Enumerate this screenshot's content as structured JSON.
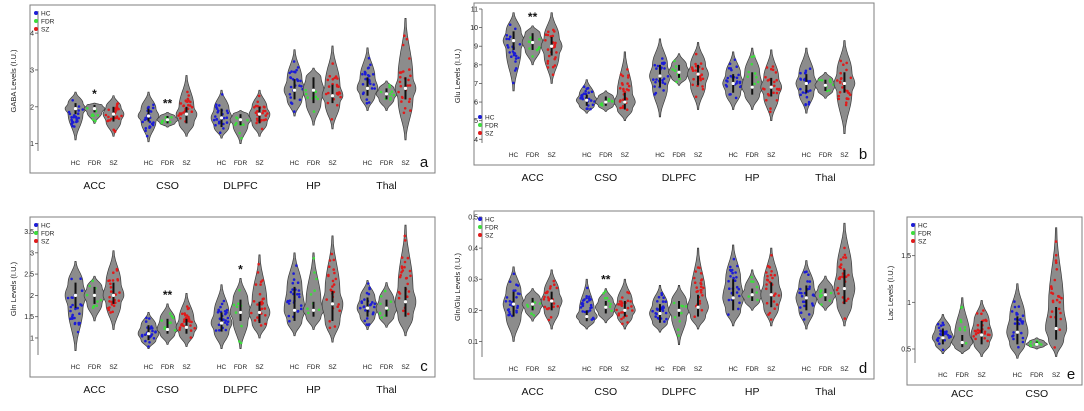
{
  "colors": {
    "HC": "#1c1cd6",
    "FDR": "#3ddc3d",
    "SZ": "#e01b1b",
    "violin": "#8c8c8c",
    "violin_stroke": "#3a3a3a",
    "frame": "#7f7f7f",
    "median": "#ffffff"
  },
  "chart_data": [
    {
      "id": "a",
      "type": "violin",
      "panel_label": "a",
      "ylabel": "GABA Levels (I.U.)",
      "ylim": [
        0.8,
        4.6
      ],
      "yticks": [
        1,
        2,
        3,
        4
      ],
      "legend": [
        "HC",
        "FDR",
        "SZ"
      ],
      "legend_position": "top-left",
      "group_labels": [
        "HC",
        "FDR",
        "SZ"
      ],
      "regions": [
        {
          "name": "ACC",
          "significance": "*",
          "sig_group": "FDR",
          "violins": [
            {
              "group": "HC",
              "min": 1.1,
              "q1": 1.8,
              "median": 1.95,
              "q3": 2.1,
              "max": 2.4
            },
            {
              "group": "FDR",
              "min": 1.55,
              "q1": 1.85,
              "median": 1.95,
              "q3": 2.05,
              "max": 2.1
            },
            {
              "group": "SZ",
              "min": 1.2,
              "q1": 1.6,
              "median": 1.8,
              "q3": 2.0,
              "max": 2.3
            }
          ]
        },
        {
          "name": "CSO",
          "significance": "**",
          "sig_group": "FDR",
          "violins": [
            {
              "group": "HC",
              "min": 1.05,
              "q1": 1.6,
              "median": 1.75,
              "q3": 1.95,
              "max": 2.4
            },
            {
              "group": "FDR",
              "min": 1.45,
              "q1": 1.55,
              "median": 1.65,
              "q3": 1.75,
              "max": 1.85
            },
            {
              "group": "SZ",
              "min": 1.2,
              "q1": 1.55,
              "median": 1.8,
              "q3": 2.0,
              "max": 2.85
            }
          ]
        },
        {
          "name": "DLPFC",
          "significance": "",
          "violins": [
            {
              "group": "HC",
              "min": 1.15,
              "q1": 1.45,
              "median": 1.7,
              "q3": 1.95,
              "max": 2.45
            },
            {
              "group": "FDR",
              "min": 1.0,
              "q1": 1.5,
              "median": 1.65,
              "q3": 1.8,
              "max": 1.9
            },
            {
              "group": "SZ",
              "min": 1.2,
              "q1": 1.55,
              "median": 1.8,
              "q3": 2.0,
              "max": 2.45
            }
          ]
        },
        {
          "name": "HP",
          "significance": "",
          "violins": [
            {
              "group": "HC",
              "min": 1.75,
              "q1": 2.2,
              "median": 2.45,
              "q3": 2.75,
              "max": 3.55
            },
            {
              "group": "FDR",
              "min": 1.5,
              "q1": 2.1,
              "median": 2.45,
              "q3": 2.8,
              "max": 3.05
            },
            {
              "group": "SZ",
              "min": 1.4,
              "q1": 2.1,
              "median": 2.3,
              "q3": 2.6,
              "max": 3.65
            }
          ]
        },
        {
          "name": "Thal",
          "significance": "",
          "violins": [
            {
              "group": "HC",
              "min": 1.9,
              "q1": 2.3,
              "median": 2.5,
              "q3": 2.8,
              "max": 3.6
            },
            {
              "group": "FDR",
              "min": 1.9,
              "q1": 2.2,
              "median": 2.35,
              "q3": 2.5,
              "max": 2.7
            },
            {
              "group": "SZ",
              "min": 1.1,
              "q1": 2.2,
              "median": 2.5,
              "q3": 2.8,
              "max": 4.4
            }
          ]
        }
      ]
    },
    {
      "id": "b",
      "type": "violin",
      "panel_label": "b",
      "ylabel": "Glu Levels (I.U.)",
      "ylim": [
        3.8,
        11.0
      ],
      "yticks": [
        4,
        5,
        6,
        7,
        8,
        9,
        10,
        11
      ],
      "legend": [
        "HC",
        "FDR",
        "SZ"
      ],
      "legend_position": "bottom-left",
      "group_labels": [
        "HC",
        "FDR",
        "SZ"
      ],
      "regions": [
        {
          "name": "ACC",
          "significance": "**",
          "sig_group": "FDR",
          "violins": [
            {
              "group": "HC",
              "min": 6.6,
              "q1": 8.8,
              "median": 9.3,
              "q3": 9.8,
              "max": 10.8
            },
            {
              "group": "FDR",
              "min": 8.0,
              "q1": 8.8,
              "median": 9.2,
              "q3": 9.7,
              "max": 10.1
            },
            {
              "group": "SZ",
              "min": 7.0,
              "q1": 8.5,
              "median": 9.0,
              "q3": 9.5,
              "max": 10.8
            }
          ]
        },
        {
          "name": "CSO",
          "significance": "",
          "violins": [
            {
              "group": "HC",
              "min": 5.4,
              "q1": 5.8,
              "median": 6.1,
              "q3": 6.4,
              "max": 7.2
            },
            {
              "group": "FDR",
              "min": 5.5,
              "q1": 5.8,
              "median": 6.0,
              "q3": 6.3,
              "max": 6.6
            },
            {
              "group": "SZ",
              "min": 5.0,
              "q1": 5.6,
              "median": 6.0,
              "q3": 6.5,
              "max": 8.7
            }
          ]
        },
        {
          "name": "DLPFC",
          "significance": "",
          "violins": [
            {
              "group": "HC",
              "min": 5.2,
              "q1": 6.8,
              "median": 7.4,
              "q3": 8.0,
              "max": 9.4
            },
            {
              "group": "FDR",
              "min": 6.9,
              "q1": 7.3,
              "median": 7.6,
              "q3": 8.0,
              "max": 8.6
            },
            {
              "group": "SZ",
              "min": 5.6,
              "q1": 6.9,
              "median": 7.5,
              "q3": 8.0,
              "max": 9.2
            }
          ]
        },
        {
          "name": "HP",
          "significance": "",
          "violins": [
            {
              "group": "HC",
              "min": 5.6,
              "q1": 6.5,
              "median": 7.0,
              "q3": 7.5,
              "max": 8.7
            },
            {
              "group": "FDR",
              "min": 5.6,
              "q1": 6.4,
              "median": 6.8,
              "q3": 7.6,
              "max": 8.9
            },
            {
              "group": "SZ",
              "min": 5.0,
              "q1": 6.3,
              "median": 6.8,
              "q3": 7.3,
              "max": 8.8
            }
          ]
        },
        {
          "name": "Thal",
          "significance": "",
          "violins": [
            {
              "group": "HC",
              "min": 5.4,
              "q1": 6.5,
              "median": 7.0,
              "q3": 7.5,
              "max": 8.9
            },
            {
              "group": "FDR",
              "min": 6.2,
              "q1": 6.6,
              "median": 6.9,
              "q3": 7.2,
              "max": 7.6
            },
            {
              "group": "SZ",
              "min": 4.3,
              "q1": 6.5,
              "median": 7.0,
              "q3": 7.6,
              "max": 9.3
            }
          ]
        }
      ]
    },
    {
      "id": "c",
      "type": "violin",
      "panel_label": "c",
      "ylabel": "Gln Levels (I.U.)",
      "ylim": [
        0.6,
        3.7
      ],
      "yticks": [
        1,
        1.5,
        2,
        2.5,
        3,
        3.5
      ],
      "legend": [
        "HC",
        "FDR",
        "SZ"
      ],
      "legend_position": "top-left",
      "group_labels": [
        "HC",
        "FDR",
        "SZ"
      ],
      "regions": [
        {
          "name": "ACC",
          "significance": "",
          "violins": [
            {
              "group": "HC",
              "min": 0.7,
              "q1": 1.7,
              "median": 2.0,
              "q3": 2.3,
              "max": 2.8
            },
            {
              "group": "FDR",
              "min": 1.4,
              "q1": 1.8,
              "median": 2.0,
              "q3": 2.2,
              "max": 2.45
            },
            {
              "group": "SZ",
              "min": 1.2,
              "q1": 1.8,
              "median": 2.0,
              "q3": 2.3,
              "max": 3.05
            }
          ]
        },
        {
          "name": "CSO",
          "significance": "**",
          "sig_group": "FDR",
          "violins": [
            {
              "group": "HC",
              "min": 0.75,
              "q1": 0.95,
              "median": 1.1,
              "q3": 1.3,
              "max": 1.6
            },
            {
              "group": "FDR",
              "min": 0.85,
              "q1": 1.1,
              "median": 1.2,
              "q3": 1.45,
              "max": 1.8
            },
            {
              "group": "SZ",
              "min": 0.8,
              "q1": 1.1,
              "median": 1.25,
              "q3": 1.45,
              "max": 2.05
            }
          ]
        },
        {
          "name": "DLPFC",
          "significance": "*",
          "sig_group": "FDR",
          "violins": [
            {
              "group": "HC",
              "min": 0.75,
              "q1": 1.15,
              "median": 1.35,
              "q3": 1.6,
              "max": 2.25
            },
            {
              "group": "FDR",
              "min": 0.75,
              "q1": 1.4,
              "median": 1.6,
              "q3": 1.9,
              "max": 2.4
            },
            {
              "group": "SZ",
              "min": 1.0,
              "q1": 1.35,
              "median": 1.6,
              "q3": 1.85,
              "max": 2.95
            }
          ]
        },
        {
          "name": "HP",
          "significance": "",
          "violins": [
            {
              "group": "HC",
              "min": 1.05,
              "q1": 1.4,
              "median": 1.65,
              "q3": 2.2,
              "max": 3.0
            },
            {
              "group": "FDR",
              "min": 1.2,
              "q1": 1.5,
              "median": 1.65,
              "q3": 1.85,
              "max": 3.0
            },
            {
              "group": "SZ",
              "min": 0.9,
              "q1": 1.4,
              "median": 1.8,
              "q3": 2.1,
              "max": 3.4
            }
          ]
        },
        {
          "name": "Thal",
          "significance": "",
          "violins": [
            {
              "group": "HC",
              "min": 1.2,
              "q1": 1.5,
              "median": 1.7,
              "q3": 1.95,
              "max": 2.35
            },
            {
              "group": "FDR",
              "min": 1.25,
              "q1": 1.5,
              "median": 1.7,
              "q3": 1.9,
              "max": 2.3
            },
            {
              "group": "SZ",
              "min": 1.05,
              "q1": 1.5,
              "median": 1.85,
              "q3": 2.2,
              "max": 3.65
            }
          ]
        }
      ]
    },
    {
      "id": "d",
      "type": "violin",
      "panel_label": "d",
      "ylabel": "Gln/Glu Levels (I.U.)",
      "ylim": [
        0.05,
        0.5
      ],
      "yticks": [
        0.1,
        0.2,
        0.3,
        0.4,
        0.5
      ],
      "legend": [
        "HC",
        "FDR",
        "SZ"
      ],
      "legend_position": "top-left",
      "group_labels": [
        "HC",
        "FDR",
        "SZ"
      ],
      "regions": [
        {
          "name": "ACC",
          "significance": "",
          "violins": [
            {
              "group": "HC",
              "min": 0.1,
              "q1": 0.18,
              "median": 0.22,
              "q3": 0.26,
              "max": 0.34
            },
            {
              "group": "FDR",
              "min": 0.165,
              "q1": 0.2,
              "median": 0.22,
              "q3": 0.24,
              "max": 0.27
            },
            {
              "group": "SZ",
              "min": 0.14,
              "q1": 0.2,
              "median": 0.23,
              "q3": 0.26,
              "max": 0.33
            }
          ]
        },
        {
          "name": "CSO",
          "significance": "**",
          "sig_group": "FDR",
          "violins": [
            {
              "group": "HC",
              "min": 0.14,
              "q1": 0.165,
              "median": 0.18,
              "q3": 0.2,
              "max": 0.3
            },
            {
              "group": "FDR",
              "min": 0.16,
              "q1": 0.19,
              "median": 0.21,
              "q3": 0.23,
              "max": 0.27
            },
            {
              "group": "SZ",
              "min": 0.14,
              "q1": 0.18,
              "median": 0.2,
              "q3": 0.23,
              "max": 0.3
            }
          ]
        },
        {
          "name": "DLPFC",
          "significance": "",
          "violins": [
            {
              "group": "HC",
              "min": 0.13,
              "q1": 0.16,
              "median": 0.19,
              "q3": 0.22,
              "max": 0.28
            },
            {
              "group": "FDR",
              "min": 0.09,
              "q1": 0.18,
              "median": 0.2,
              "q3": 0.23,
              "max": 0.28
            },
            {
              "group": "SZ",
              "min": 0.14,
              "q1": 0.18,
              "median": 0.21,
              "q3": 0.25,
              "max": 0.4
            }
          ]
        },
        {
          "name": "HP",
          "significance": "",
          "violins": [
            {
              "group": "HC",
              "min": 0.15,
              "q1": 0.2,
              "median": 0.24,
              "q3": 0.3,
              "max": 0.41
            },
            {
              "group": "FDR",
              "min": 0.2,
              "q1": 0.23,
              "median": 0.25,
              "q3": 0.27,
              "max": 0.33
            },
            {
              "group": "SZ",
              "min": 0.15,
              "q1": 0.21,
              "median": 0.25,
              "q3": 0.29,
              "max": 0.4
            }
          ]
        },
        {
          "name": "Thal",
          "significance": "",
          "violins": [
            {
              "group": "HC",
              "min": 0.14,
              "q1": 0.2,
              "median": 0.24,
              "q3": 0.28,
              "max": 0.36
            },
            {
              "group": "FDR",
              "min": 0.2,
              "q1": 0.23,
              "median": 0.25,
              "q3": 0.27,
              "max": 0.31
            },
            {
              "group": "SZ",
              "min": 0.15,
              "q1": 0.22,
              "median": 0.27,
              "q3": 0.33,
              "max": 0.48
            }
          ]
        }
      ]
    },
    {
      "id": "e",
      "type": "violin",
      "panel_label": "e",
      "ylabel": "Lac Levels (I.U.)",
      "ylim": [
        0.35,
        1.85
      ],
      "yticks": [
        0.5,
        1.0,
        1.5
      ],
      "legend": [
        "HC",
        "FDR",
        "SZ"
      ],
      "legend_position": "top-left",
      "group_labels": [
        "HC",
        "FDR",
        "SZ"
      ],
      "regions": [
        {
          "name": "ACC",
          "significance": "",
          "violins": [
            {
              "group": "HC",
              "min": 0.45,
              "q1": 0.55,
              "median": 0.62,
              "q3": 0.72,
              "max": 0.87
            },
            {
              "group": "FDR",
              "min": 0.45,
              "q1": 0.52,
              "median": 0.57,
              "q3": 0.65,
              "max": 1.05
            },
            {
              "group": "SZ",
              "min": 0.42,
              "q1": 0.55,
              "median": 0.65,
              "q3": 0.8,
              "max": 1.02
            }
          ]
        },
        {
          "name": "CSO",
          "significance": "",
          "violins": [
            {
              "group": "HC",
              "min": 0.4,
              "q1": 0.55,
              "median": 0.68,
              "q3": 0.85,
              "max": 1.2
            },
            {
              "group": "FDR",
              "min": 0.5,
              "q1": 0.53,
              "median": 0.55,
              "q3": 0.58,
              "max": 0.62
            },
            {
              "group": "SZ",
              "min": 0.42,
              "q1": 0.6,
              "median": 0.72,
              "q3": 0.95,
              "max": 1.8
            }
          ]
        }
      ]
    }
  ]
}
